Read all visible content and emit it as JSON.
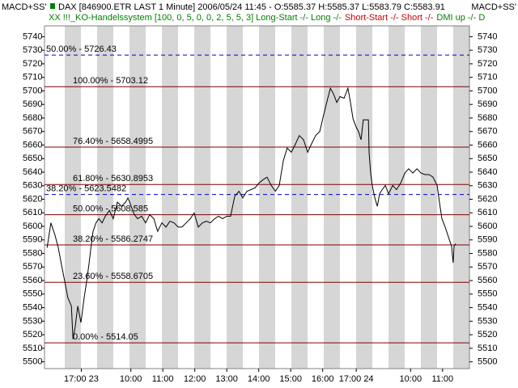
{
  "chart_data": {
    "type": "line",
    "title": "DAX [846900.ETR LAST 1 Minute] 2006/05/24 11:45 - O:5585.37 H:5585.37 L:5583.79 C:5583.91",
    "title_icon_color": "#008000",
    "subtitle_parts": [
      {
        "text": "XX !!!_KO-Handelssystem [100, 0, 5, 0, 0, 2, 5, 5, 3] Long-Start -/- Long -/-",
        "color": "#008000"
      },
      {
        "text": "Short-Start -/- Short -/-",
        "color": "#cc0000"
      },
      {
        "text": "DMI up -/- D",
        "color": "#008000"
      }
    ],
    "y_axis_labels": [
      "MACD+SS'",
      "MACD+SS'"
    ],
    "xlim": [
      0,
      13.29
    ],
    "xticks": [
      {
        "value": 1.15,
        "label": "17:00 23"
      },
      {
        "value": 2.7,
        "label": "10:00"
      },
      {
        "value": 3.7,
        "label": "11:00"
      },
      {
        "value": 4.7,
        "label": "12:00"
      },
      {
        "value": 5.7,
        "label": "13:00"
      },
      {
        "value": 6.7,
        "label": "14:00"
      },
      {
        "value": 7.7,
        "label": "15:00"
      },
      {
        "value": 8.7,
        "label": "16:00"
      },
      {
        "value": 9.75,
        "label": "17:00 24"
      },
      {
        "value": 11.45,
        "label": "10:00"
      },
      {
        "value": 12.45,
        "label": "11:00"
      }
    ],
    "ylim": [
      5495,
      5748
    ],
    "yticks": [
      5500,
      5510,
      5520,
      5530,
      5540,
      5550,
      5560,
      5570,
      5580,
      5590,
      5600,
      5610,
      5620,
      5630,
      5640,
      5650,
      5660,
      5670,
      5680,
      5690,
      5700,
      5710,
      5720,
      5730,
      5740
    ],
    "levels": [
      {
        "value": 5726.43,
        "label": "50.00% - 5726.43",
        "color": "#0000cc",
        "dashed": true
      },
      {
        "value": 5623.5482,
        "label": "38.20% - 5623.5482",
        "color": "#0000cc",
        "dashed": true
      },
      {
        "value": 5703.12,
        "label": "100.00% - 5703.12",
        "color": "#800000",
        "dashed": false
      },
      {
        "value": 5658.4995,
        "label": "76.40% - 5658.4995",
        "color": "#800000",
        "dashed": false
      },
      {
        "value": 5630.8953,
        "label": "61.80% - 5630.8953",
        "color": "#800000",
        "dashed": false
      },
      {
        "value": 5608.585,
        "label": "50.00% - 5608.585",
        "color": "#800000",
        "dashed": false
      },
      {
        "value": 5586.2747,
        "label": "38.20% - 5586.2747",
        "color": "#800000",
        "dashed": false
      },
      {
        "value": 5558.6705,
        "label": "23.60% - 5558.6705",
        "color": "#800000",
        "dashed": false
      },
      {
        "value": 5514.05,
        "label": "0.00% - 5514.05",
        "color": "#800000",
        "dashed": false
      }
    ],
    "series": [
      {
        "color": "#000000",
        "x": [
          0.08,
          0.2,
          0.33,
          0.43,
          0.53,
          0.63,
          0.73,
          0.84,
          0.89,
          0.96,
          1.04,
          1.14,
          1.24,
          1.32,
          1.39,
          1.45,
          1.52,
          1.61,
          1.7,
          1.8,
          1.9,
          2.03,
          2.15,
          2.28,
          2.41,
          2.54,
          2.61,
          2.71,
          2.81,
          2.91,
          3.04,
          3.16,
          3.29,
          3.42,
          3.54,
          3.67,
          3.8,
          3.92,
          4.05,
          4.18,
          4.3,
          4.43,
          4.56,
          4.68,
          4.81,
          4.94,
          5.06,
          5.19,
          5.32,
          5.44,
          5.57,
          5.7,
          5.82,
          5.95,
          6.08,
          6.2,
          6.33,
          6.58,
          6.71,
          6.84,
          6.96,
          7.09,
          7.22,
          7.34,
          7.47,
          7.59,
          7.72,
          7.85,
          7.97,
          8.1,
          8.23,
          8.35,
          8.48,
          8.61,
          8.73,
          8.86,
          8.94,
          9.04,
          9.14,
          9.24,
          9.37,
          9.49,
          9.57,
          9.65,
          9.75,
          9.82,
          9.9,
          9.97,
          10.13,
          10.15,
          10.2,
          10.25,
          10.33,
          10.41,
          10.48,
          10.56,
          10.66,
          10.76,
          10.89,
          11.01,
          11.14,
          11.27,
          11.39,
          11.52,
          11.65,
          11.77,
          11.9,
          12.03,
          12.15,
          12.28,
          12.35,
          12.43,
          12.53,
          12.66,
          12.73,
          12.78,
          12.81,
          12.86
        ],
        "values": [
          5584.2,
          5602.6,
          5593.4,
          5584.2,
          5571.9,
          5559.6,
          5547.4,
          5541.2,
          5516.7,
          5525.9,
          5541.2,
          5529.0,
          5547.4,
          5559.6,
          5571.9,
          5584.2,
          5596.4,
          5602.6,
          5605.6,
          5602.6,
          5607.5,
          5611.8,
          5605.6,
          5617.9,
          5614.8,
          5617.9,
          5621.0,
          5614.8,
          5608.7,
          5605.6,
          5607.5,
          5602.6,
          5608.7,
          5605.6,
          5596.4,
          5602.6,
          5599.5,
          5603.8,
          5602.6,
          5599.5,
          5599.5,
          5602.6,
          5605.6,
          5609.9,
          5599.5,
          5602.6,
          5603.8,
          5602.6,
          5605.6,
          5607.5,
          5605.6,
          5607.5,
          5607.5,
          5622.2,
          5625.9,
          5621.0,
          5625.9,
          5628.3,
          5632.0,
          5634.5,
          5636.3,
          5630.2,
          5626.0,
          5630.2,
          5648.6,
          5657.8,
          5654.7,
          5660.9,
          5667.0,
          5663.9,
          5654.7,
          5660.9,
          5667.0,
          5670.1,
          5682.3,
          5694.6,
          5702.0,
          5697.7,
          5691.5,
          5695.8,
          5694.6,
          5702.0,
          5691.5,
          5679.3,
          5673.1,
          5670.1,
          5663.9,
          5678.6,
          5678.6,
          5654.7,
          5639.4,
          5630.2,
          5621.0,
          5614.8,
          5624.0,
          5627.1,
          5630.2,
          5624.0,
          5630.2,
          5627.1,
          5632.0,
          5639.4,
          5642.5,
          5639.4,
          5642.5,
          5639.4,
          5638.2,
          5638.2,
          5636.3,
          5630.2,
          5617.9,
          5605.6,
          5599.5,
          5590.3,
          5585.4,
          5573.1,
          5585.4,
          5587.2
        ]
      }
    ]
  }
}
